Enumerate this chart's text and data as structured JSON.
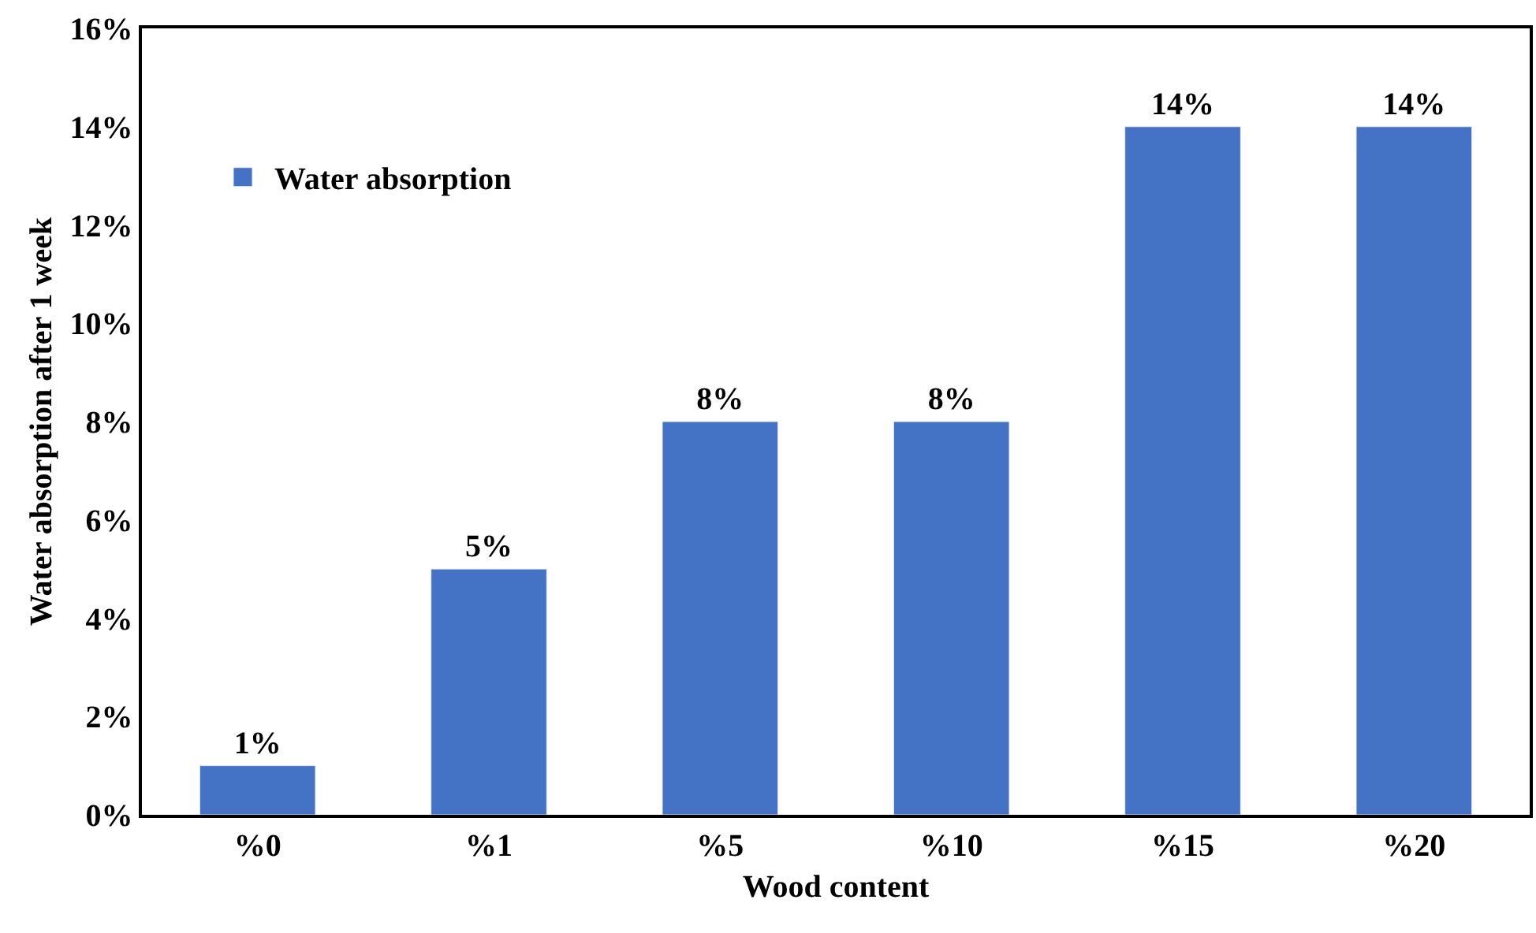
{
  "chart_data": {
    "type": "bar",
    "xlabel": "Wood content",
    "ylabel": "Water absorption after 1 week",
    "categories": [
      "%0",
      "%1",
      "%5",
      "%10",
      "%15",
      "%20"
    ],
    "series": [
      {
        "name": "Water absorption",
        "color": "#4472c4",
        "values": [
          1,
          5,
          8,
          8,
          14,
          14
        ],
        "value_labels": [
          "1%",
          "5%",
          "8%",
          "8%",
          "14%",
          "14%"
        ]
      }
    ],
    "ylim": [
      0,
      16
    ],
    "yticks": [
      {
        "value": 0,
        "label": "0%"
      },
      {
        "value": 2,
        "label": "2%"
      },
      {
        "value": 4,
        "label": "4%"
      },
      {
        "value": 6,
        "label": "6%"
      },
      {
        "value": 8,
        "label": "8%"
      },
      {
        "value": 10,
        "label": "10%"
      },
      {
        "value": 12,
        "label": "12%"
      },
      {
        "value": 14,
        "label": "14%"
      },
      {
        "value": 16,
        "label": "16%"
      }
    ],
    "legend": "top left"
  }
}
